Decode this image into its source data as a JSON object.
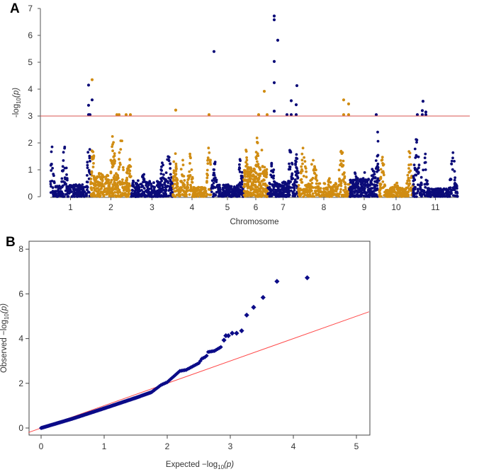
{
  "chart_data": [
    {
      "type": "scatter",
      "panel_label": "A",
      "title": "",
      "xlabel": "Chromosome",
      "ylabel": {
        "prefix": "-log",
        "sub": "10",
        "suffix": "(p)"
      },
      "ylim": [
        0,
        7
      ],
      "yticks": [
        "0",
        "1",
        "2",
        "3",
        "4",
        "5",
        "6",
        "7"
      ],
      "threshold": 3,
      "colors": {
        "odd": "#0b0b78",
        "even": "#d08c12",
        "threshold": "#d9534f"
      },
      "chromosomes": [
        {
          "label": "1",
          "start": 0,
          "end": 28.5,
          "baseline": 0.45,
          "n": 260,
          "peaks": [
            [
              0.02,
              2.1
            ],
            [
              0.35,
              1.9
            ],
            [
              0.97,
              2.4
            ]
          ]
        },
        {
          "label": "2",
          "start": 28.5,
          "end": 57,
          "baseline": 0.9,
          "n": 340,
          "peaks": [
            [
              0.05,
              2.0
            ],
            [
              0.55,
              2.4
            ],
            [
              0.75,
              2.45
            ],
            [
              0.95,
              1.6
            ]
          ]
        },
        {
          "label": "3",
          "start": 57,
          "end": 86.5,
          "baseline": 0.6,
          "n": 280,
          "peaks": [
            [
              0.3,
              0.9
            ],
            [
              0.75,
              1.35
            ],
            [
              0.9,
              1.9
            ]
          ]
        },
        {
          "label": "4",
          "start": 86.5,
          "end": 113.5,
          "baseline": 0.35,
          "n": 220,
          "peaks": [
            [
              0.05,
              1.8
            ],
            [
              0.25,
              1.5
            ],
            [
              0.45,
              1.6
            ],
            [
              0.95,
              2.1
            ]
          ]
        },
        {
          "label": "5",
          "start": 113.5,
          "end": 136.5,
          "baseline": 0.45,
          "n": 220,
          "peaks": [
            [
              0.1,
              1.5
            ],
            [
              0.9,
              1.55
            ]
          ]
        },
        {
          "label": "6",
          "start": 136.5,
          "end": 153.5,
          "baseline": 1.1,
          "n": 260,
          "peaks": [
            [
              0.1,
              1.9
            ],
            [
              0.55,
              2.35
            ],
            [
              0.75,
              1.9
            ]
          ]
        },
        {
          "label": "7",
          "start": 153.5,
          "end": 175,
          "baseline": 0.55,
          "n": 240,
          "peaks": [
            [
              0.15,
              1.55
            ],
            [
              0.4,
              0.4
            ],
            [
              0.75,
              2.2
            ],
            [
              0.95,
              1.85
            ]
          ]
        },
        {
          "label": "8",
          "start": 175,
          "end": 211,
          "baseline": 0.5,
          "n": 300,
          "peaks": [
            [
              0.1,
              1.9
            ],
            [
              0.3,
              1.6
            ],
            [
              0.6,
              0.7
            ],
            [
              0.85,
              1.85
            ]
          ]
        },
        {
          "label": "9",
          "start": 211,
          "end": 232,
          "baseline": 0.7,
          "n": 240,
          "peaks": [
            [
              0.2,
              1.1
            ],
            [
              0.5,
              1.0
            ],
            [
              0.8,
              1.6
            ],
            [
              0.95,
              2.45
            ]
          ]
        },
        {
          "label": "10",
          "start": 232,
          "end": 256,
          "baseline": 0.35,
          "n": 200,
          "peaks": [
            [
              0.1,
              1.6
            ],
            [
              0.5,
              0.6
            ],
            [
              0.9,
              2.3
            ]
          ]
        },
        {
          "label": "11",
          "start": 256,
          "end": 287.5,
          "baseline": 0.3,
          "n": 280,
          "peaks": [
            [
              0.08,
              2.3
            ],
            [
              0.25,
              1.9
            ],
            [
              0.55,
              0.3
            ],
            [
              0.9,
              1.9
            ]
          ]
        }
      ],
      "significant_points": [
        {
          "pos": 27,
          "y": 4.15,
          "chr": 1
        },
        {
          "pos": 27,
          "y": 3.4,
          "chr": 1
        },
        {
          "pos": 27,
          "y": 3.05,
          "chr": 1
        },
        {
          "pos": 28,
          "y": 3.05,
          "chr": 1
        },
        {
          "pos": 29.5,
          "y": 3.6,
          "chr": 1
        },
        {
          "pos": 29.5,
          "y": 4.35,
          "chr": 2
        },
        {
          "pos": 47,
          "y": 3.05,
          "chr": 2
        },
        {
          "pos": 48.5,
          "y": 3.05,
          "chr": 2
        },
        {
          "pos": 53.5,
          "y": 3.05,
          "chr": 2
        },
        {
          "pos": 56.5,
          "y": 3.05,
          "chr": 2
        },
        {
          "pos": 88.5,
          "y": 3.22,
          "chr": 4
        },
        {
          "pos": 112,
          "y": 3.05,
          "chr": 4
        },
        {
          "pos": 115.5,
          "y": 5.4,
          "chr": 5
        },
        {
          "pos": 147,
          "y": 3.05,
          "chr": 6
        },
        {
          "pos": 151,
          "y": 3.92,
          "chr": 6
        },
        {
          "pos": 153,
          "y": 3.05,
          "chr": 6
        },
        {
          "pos": 158,
          "y": 6.72,
          "chr": 7
        },
        {
          "pos": 158,
          "y": 6.58,
          "chr": 7
        },
        {
          "pos": 160.5,
          "y": 5.82,
          "chr": 7
        },
        {
          "pos": 158,
          "y": 5.03,
          "chr": 7
        },
        {
          "pos": 158,
          "y": 4.24,
          "chr": 7
        },
        {
          "pos": 158,
          "y": 3.18,
          "chr": 7
        },
        {
          "pos": 167,
          "y": 3.05,
          "chr": 7
        },
        {
          "pos": 170,
          "y": 3.05,
          "chr": 7
        },
        {
          "pos": 170,
          "y": 3.57,
          "chr": 7
        },
        {
          "pos": 173.5,
          "y": 3.05,
          "chr": 7
        },
        {
          "pos": 173.5,
          "y": 3.42,
          "chr": 7
        },
        {
          "pos": 174,
          "y": 4.13,
          "chr": 7
        },
        {
          "pos": 207,
          "y": 3.6,
          "chr": 8
        },
        {
          "pos": 207,
          "y": 3.05,
          "chr": 8
        },
        {
          "pos": 210.5,
          "y": 3.05,
          "chr": 8
        },
        {
          "pos": 210.5,
          "y": 3.45,
          "chr": 8
        },
        {
          "pos": 230,
          "y": 3.05,
          "chr": 9
        },
        {
          "pos": 259,
          "y": 3.05,
          "chr": 11
        },
        {
          "pos": 262.5,
          "y": 3.05,
          "chr": 11
        },
        {
          "pos": 262.5,
          "y": 3.2,
          "chr": 11
        },
        {
          "pos": 263,
          "y": 3.55,
          "chr": 11
        },
        {
          "pos": 265,
          "y": 3.05,
          "chr": 11
        },
        {
          "pos": 265,
          "y": 3.15,
          "chr": 11
        }
      ]
    },
    {
      "type": "scatter",
      "panel_label": "B",
      "xlabel": {
        "prefix": "Expected  −log",
        "sub": "10",
        "suffix": "(p)"
      },
      "ylabel": {
        "prefix": "Observed  −log",
        "sub": "10",
        "suffix": "(p)"
      },
      "xlim": [
        -0.2,
        5.2
      ],
      "ylim": [
        -0.3,
        8.3
      ],
      "xticks": [
        "0",
        "1",
        "2",
        "3",
        "4",
        "5"
      ],
      "yticks": [
        "0",
        "2",
        "4",
        "6",
        "8"
      ],
      "reference_line": "y = x",
      "colors": {
        "points": "#0b0b88",
        "reference": "#ff4a4a"
      },
      "bulk_curve": [
        [
          0,
          0
        ],
        [
          0.5,
          0.42
        ],
        [
          1,
          0.88
        ],
        [
          1.5,
          1.35
        ],
        [
          1.75,
          1.6
        ],
        [
          1.9,
          1.92
        ],
        [
          2.0,
          2.05
        ],
        [
          2.1,
          2.3
        ],
        [
          2.2,
          2.55
        ],
        [
          2.3,
          2.6
        ],
        [
          2.4,
          2.75
        ],
        [
          2.5,
          2.9
        ],
        [
          2.55,
          3.1
        ],
        [
          2.62,
          3.2
        ],
        [
          2.65,
          3.4
        ],
        [
          2.75,
          3.45
        ],
        [
          2.85,
          3.62
        ]
      ],
      "top_points": [
        [
          2.9,
          3.93
        ],
        [
          2.93,
          4.13
        ],
        [
          2.97,
          4.13
        ],
        [
          3.03,
          4.24
        ],
        [
          3.1,
          4.24
        ],
        [
          3.18,
          4.35
        ],
        [
          3.26,
          5.05
        ],
        [
          3.37,
          5.4
        ],
        [
          3.52,
          5.84
        ],
        [
          3.74,
          6.56
        ],
        [
          4.22,
          6.72
        ]
      ]
    }
  ]
}
